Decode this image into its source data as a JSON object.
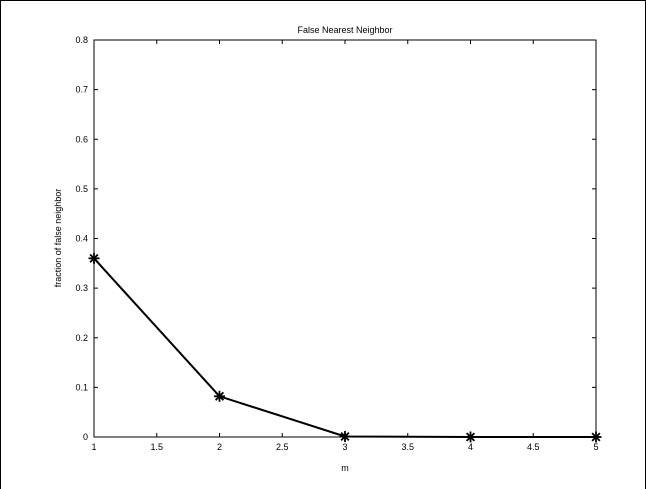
{
  "chart_data": {
    "type": "line",
    "title": "False Nearest Neighbor",
    "xlabel": "m",
    "ylabel": "fraction of false neighbor",
    "xlim": [
      1,
      5
    ],
    "ylim": [
      0,
      0.8
    ],
    "x_ticks": [
      "1",
      "1.5",
      "2",
      "2.5",
      "3",
      "3.5",
      "4",
      "4.5",
      "5"
    ],
    "y_ticks": [
      "0",
      "0.1",
      "0.2",
      "0.3",
      "0.4",
      "0.5",
      "0.6",
      "0.7",
      "0.8"
    ],
    "grid": false,
    "marker": "asterisk",
    "line_color": "#000000",
    "series": [
      {
        "x": [
          1,
          2,
          3,
          4,
          5
        ],
        "y": [
          0.36,
          0.082,
          0.001,
          0.0,
          0.0
        ]
      }
    ]
  }
}
